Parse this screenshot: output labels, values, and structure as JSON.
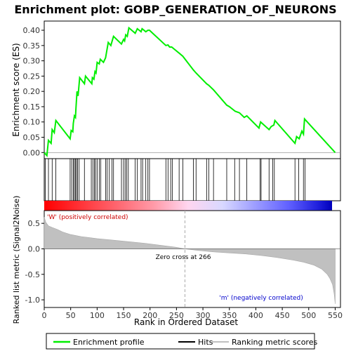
{
  "chart_data": {
    "type": "line",
    "title": "Enrichment plot: GOBP_GENERATION_OF_NEURONS",
    "enrichment_panel": {
      "ylabel": "Enrichment score (ES)",
      "ylim": [
        -0.02,
        0.43
      ],
      "yticks": [
        "0.00",
        "0.05",
        "0.10",
        "0.15",
        "0.20",
        "0.25",
        "0.30",
        "0.35",
        "0.40"
      ],
      "ytick_values": [
        0.0,
        0.05,
        0.1,
        0.15,
        0.2,
        0.25,
        0.3,
        0.35,
        0.4
      ],
      "series": [
        {
          "name": "Enrichment profile",
          "color": "#00ee00",
          "x": [
            0,
            5,
            8,
            13,
            15,
            19,
            22,
            49,
            51,
            54,
            55,
            57,
            59,
            60,
            62,
            64,
            67,
            76,
            78,
            90,
            91,
            94,
            96,
            98,
            100,
            104,
            106,
            112,
            116,
            118,
            121,
            126,
            131,
            146,
            150,
            152,
            154,
            157,
            160,
            172,
            176,
            183,
            185,
            192,
            196,
            199,
            205,
            230,
            234,
            237,
            241,
            255,
            262,
            282,
            287,
            307,
            311,
            320,
            345,
            350,
            361,
            369,
            378,
            383,
            406,
            409,
            425,
            429,
            434,
            436,
            474,
            477,
            482,
            487,
            490,
            492,
            550
          ],
          "y": [
            0.0,
            -0.01,
            0.04,
            0.03,
            0.075,
            0.065,
            0.105,
            0.045,
            0.072,
            0.068,
            0.095,
            0.12,
            0.115,
            0.145,
            0.2,
            0.185,
            0.245,
            0.225,
            0.25,
            0.225,
            0.245,
            0.24,
            0.265,
            0.26,
            0.295,
            0.29,
            0.305,
            0.295,
            0.31,
            0.33,
            0.36,
            0.35,
            0.38,
            0.355,
            0.37,
            0.365,
            0.385,
            0.38,
            0.408,
            0.39,
            0.405,
            0.395,
            0.405,
            0.395,
            0.4,
            0.4,
            0.39,
            0.35,
            0.352,
            0.345,
            0.345,
            0.325,
            0.315,
            0.27,
            0.26,
            0.225,
            0.22,
            0.205,
            0.155,
            0.15,
            0.135,
            0.13,
            0.115,
            0.12,
            0.08,
            0.1,
            0.075,
            0.085,
            0.09,
            0.105,
            0.03,
            0.052,
            0.045,
            0.07,
            0.06,
            0.11,
            0.0
          ]
        }
      ]
    },
    "hits": [
      2,
      8,
      15,
      22,
      49,
      52,
      55,
      57,
      59,
      61,
      63,
      66,
      76,
      89,
      92,
      95,
      97,
      100,
      104,
      107,
      116,
      119,
      123,
      128,
      131,
      146,
      150,
      153,
      156,
      159,
      172,
      176,
      183,
      186,
      192,
      196,
      199,
      230,
      234,
      239,
      242,
      255,
      262,
      282,
      287,
      307,
      311,
      320,
      345,
      360,
      369,
      383,
      408,
      410,
      425,
      432,
      435,
      474,
      481,
      490,
      493
    ],
    "ranking_panel": {
      "ylabel": "Ranked list metric (Signal2Noise)",
      "xlabel": "Rank in Ordered Dataset",
      "ylim": [
        -1.15,
        0.75
      ],
      "yticks": [
        "-1.0",
        "-0.5",
        "0.0",
        "0.5"
      ],
      "ytick_values": [
        -1.0,
        -0.5,
        0.0,
        0.5
      ],
      "xlim": [
        0,
        560
      ],
      "xticks": [
        "0",
        "50",
        "100",
        "150",
        "200",
        "250",
        "300",
        "350",
        "400",
        "450",
        "500",
        "550"
      ],
      "xtick_values": [
        0,
        50,
        100,
        150,
        200,
        250,
        300,
        350,
        400,
        450,
        500,
        550
      ],
      "metric_curve": {
        "x": [
          0,
          3,
          8,
          15,
          25,
          35,
          50,
          70,
          100,
          130,
          160,
          190,
          220,
          250,
          266,
          290,
          320,
          350,
          380,
          410,
          440,
          470,
          490,
          510,
          525,
          535,
          540,
          545,
          548,
          550
        ],
        "y": [
          0.62,
          0.52,
          0.45,
          0.42,
          0.38,
          0.33,
          0.28,
          0.24,
          0.2,
          0.17,
          0.14,
          0.11,
          0.07,
          0.03,
          0.0,
          -0.03,
          -0.06,
          -0.08,
          -0.1,
          -0.13,
          -0.17,
          -0.22,
          -0.26,
          -0.32,
          -0.4,
          -0.5,
          -0.58,
          -0.7,
          -0.88,
          -1.08
        ]
      },
      "zero_cross_rank": 266,
      "zero_cross_label": "Zero cross at 266",
      "pos_label": "'W' (positively correlated)",
      "neg_label": "'m' (negatively correlated)"
    },
    "colors": {
      "enrichment_line": "#00ee00",
      "hits": "#000000",
      "metric_fill": "#c0c0c0",
      "pos_label": "#cc0000",
      "neg_label": "#0000cc",
      "zero_line": "#aaaaaa"
    },
    "legend": {
      "items": [
        {
          "label": "Enrichment profile",
          "color": "#00ee00",
          "kind": "line"
        },
        {
          "label": "Hits",
          "color": "#000000",
          "kind": "line"
        },
        {
          "label": "Ranking metric scores",
          "color": "#c0c0c0",
          "kind": "line"
        }
      ]
    }
  }
}
